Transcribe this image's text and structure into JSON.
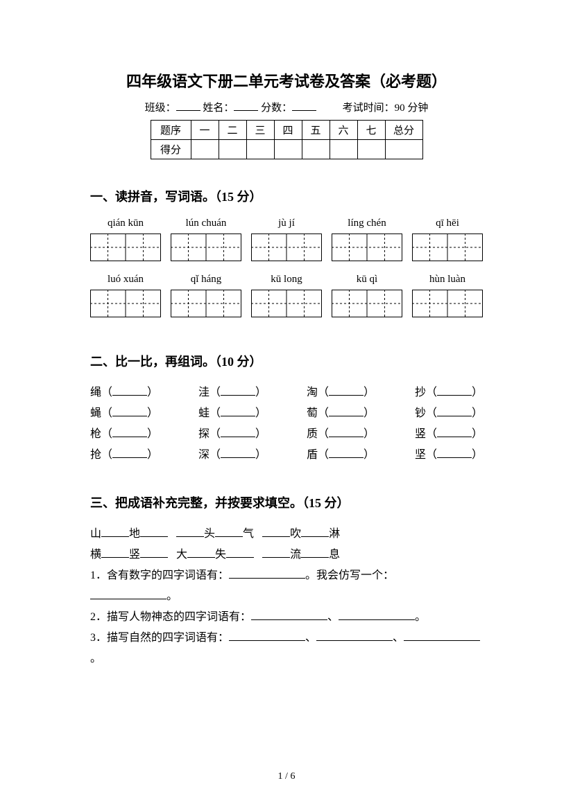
{
  "title": "四年级语文下册二单元考试卷及答案（必考题）",
  "meta": {
    "class_label": "班级：",
    "name_label": "姓名：",
    "score_label": "分数：",
    "time_label": "考试时间：90 分钟"
  },
  "score_table": {
    "row_header": "题序",
    "score_header": "得分",
    "cols": [
      "一",
      "二",
      "三",
      "四",
      "五",
      "六",
      "七"
    ],
    "total": "总分"
  },
  "section1": {
    "heading": "一、读拼音，写词语。（15 分）",
    "row1": [
      "qián kūn",
      "lún chuán",
      "jù jí",
      "líng chén",
      "qī hēi"
    ],
    "row2": [
      "luó xuán",
      "qǐ háng",
      "kū long",
      "kū qì",
      "hùn luàn"
    ]
  },
  "section2": {
    "heading": "二、比一比，再组词。（10 分）",
    "pairs": [
      [
        [
          "绳",
          "蝇"
        ],
        [
          "洼",
          "蛙"
        ],
        [
          "淘",
          "萄"
        ],
        [
          "抄",
          "钞"
        ]
      ],
      [
        [
          "枪",
          "抢"
        ],
        [
          "探",
          "深"
        ],
        [
          "质",
          "盾"
        ],
        [
          "竖",
          "坚"
        ]
      ]
    ]
  },
  "section3": {
    "heading": "三、把成语补充完整，并按要求填空。（15 分）",
    "line1_parts": [
      "山",
      "地",
      "头",
      "气",
      "吹",
      "淋"
    ],
    "line2_parts": [
      "横",
      "竖",
      "大",
      "失",
      "流",
      "息"
    ],
    "q1": "1．含有数字的四字词语有：",
    "q1_tail": "。我会仿写一个：",
    "q1_end": "。",
    "q2": "2．描写人物神态的四字词语有：",
    "sep": "、",
    "end": "。",
    "q3": "3．描写自然的四字词语有："
  },
  "page": {
    "cur": "1",
    "total": "6"
  },
  "colors": {
    "text": "#000000",
    "bg": "#ffffff"
  }
}
